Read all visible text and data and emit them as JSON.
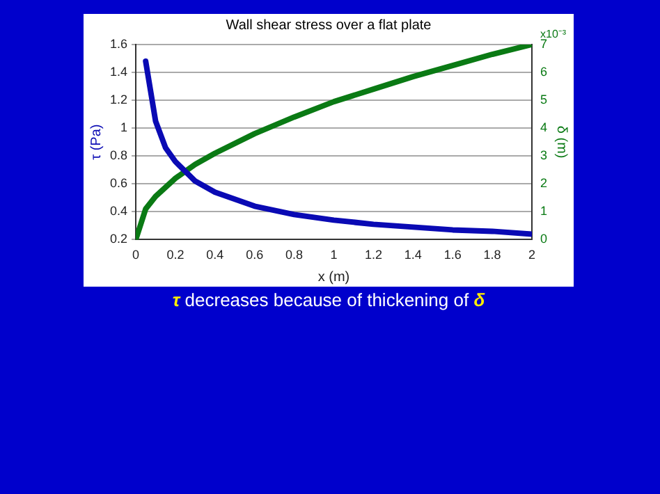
{
  "chart_data": {
    "type": "line",
    "title": "Wall shear stress over a flat plate",
    "xlabel": "x (m)",
    "ylabel": "τ (Pa)",
    "y2label": "δ (m)",
    "series": [
      {
        "color": "#0a0ab4",
        "x": [
          0.05,
          0.1,
          0.15,
          0.2,
          0.3,
          0.4,
          0.6,
          0.8,
          1.0,
          1.2,
          1.4,
          1.6,
          1.8,
          2.0
        ],
        "values": [
          1.48,
          1.05,
          0.86,
          0.76,
          0.62,
          0.54,
          0.44,
          0.38,
          0.34,
          0.31,
          0.29,
          0.27,
          0.26,
          0.24
        ]
      },
      {
        "color": "#0a7a14",
        "axis": "y2",
        "x": [
          0,
          0.05,
          0.1,
          0.2,
          0.3,
          0.4,
          0.6,
          0.8,
          1.0,
          1.2,
          1.4,
          1.6,
          1.8,
          2.0
        ],
        "values": [
          0,
          1.1,
          1.55,
          2.2,
          2.7,
          3.1,
          3.8,
          4.4,
          4.95,
          5.4,
          5.85,
          6.25,
          6.65,
          7.0
        ]
      }
    ],
    "xlim": [
      0,
      2
    ],
    "xticks": [
      0,
      0.2,
      0.4,
      0.6,
      0.8,
      1,
      1.2,
      1.4,
      1.6,
      1.8,
      2
    ],
    "ylim": [
      0.2,
      1.6
    ],
    "yticks": [
      0.2,
      0.4,
      0.6,
      0.8,
      1,
      1.2,
      1.4,
      1.6
    ],
    "y2lim": [
      0,
      7
    ],
    "y2ticks": [
      0,
      1,
      2,
      3,
      4,
      5,
      6,
      7
    ],
    "grid": "y",
    "line_style": "solid",
    "marker": "none",
    "legend": false,
    "annotations": [
      "x10⁻³",
      "τ decreases because of thickening of δ"
    ]
  }
}
